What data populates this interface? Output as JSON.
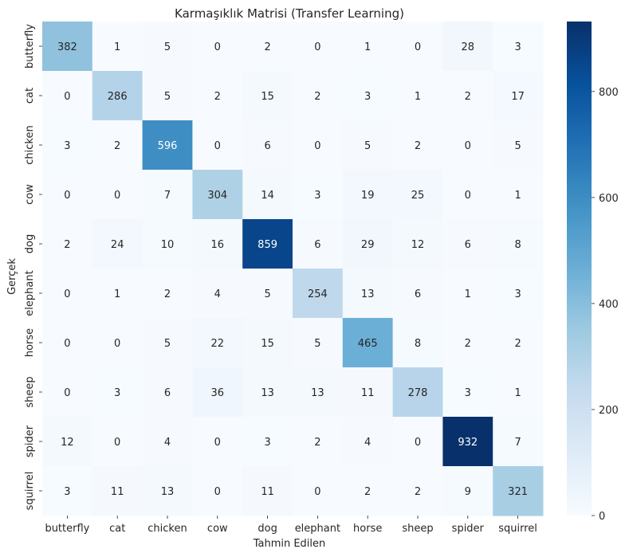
{
  "chart_data": {
    "type": "heatmap",
    "title": "Karmaşıklık Matrisi (Transfer Learning)",
    "xlabel": "Tahmin Edilen",
    "ylabel": "Gerçek",
    "x_categories": [
      "butterfly",
      "cat",
      "chicken",
      "cow",
      "dog",
      "elephant",
      "horse",
      "sheep",
      "spider",
      "squirrel"
    ],
    "y_categories": [
      "butterfly",
      "cat",
      "chicken",
      "cow",
      "dog",
      "elephant",
      "horse",
      "sheep",
      "spider",
      "squirrel"
    ],
    "values": [
      [
        382,
        1,
        5,
        0,
        2,
        0,
        1,
        0,
        28,
        3
      ],
      [
        0,
        286,
        5,
        2,
        15,
        2,
        3,
        1,
        2,
        17
      ],
      [
        3,
        2,
        596,
        0,
        6,
        0,
        5,
        2,
        0,
        5
      ],
      [
        0,
        0,
        7,
        304,
        14,
        3,
        19,
        25,
        0,
        1
      ],
      [
        2,
        24,
        10,
        16,
        859,
        6,
        29,
        12,
        6,
        8
      ],
      [
        0,
        1,
        2,
        4,
        5,
        254,
        13,
        6,
        1,
        3
      ],
      [
        0,
        0,
        5,
        22,
        15,
        5,
        465,
        8,
        2,
        2
      ],
      [
        0,
        3,
        6,
        36,
        13,
        13,
        11,
        278,
        3,
        1
      ],
      [
        12,
        0,
        4,
        0,
        3,
        2,
        4,
        0,
        932,
        7
      ],
      [
        3,
        11,
        13,
        0,
        11,
        0,
        2,
        2,
        9,
        321
      ]
    ],
    "colormap": "Blues",
    "colorbar": {
      "range": [
        0,
        932
      ],
      "ticks": [
        0,
        200,
        400,
        600,
        800
      ]
    }
  }
}
